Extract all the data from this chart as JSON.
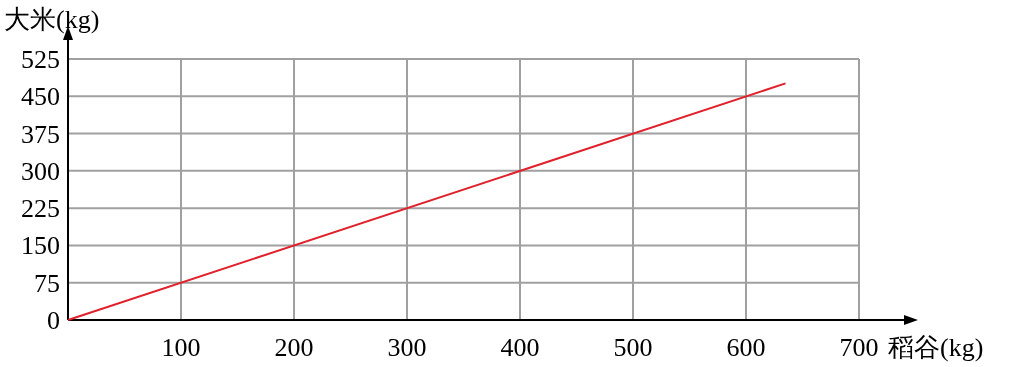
{
  "chart_data": {
    "type": "line",
    "xlabel": "稻谷(kg)",
    "ylabel": "大米(kg)",
    "x": [
      0,
      635
    ],
    "series": [
      {
        "color": "#e0202a",
        "values": [
          0,
          476
        ]
      }
    ],
    "xlim": [
      0,
      700
    ],
    "ylim": [
      0,
      525
    ],
    "xticks": [
      {
        "value": 0,
        "label": null
      },
      100,
      200,
      300,
      400,
      500,
      600,
      700
    ],
    "yticks": [
      0,
      75,
      150,
      225,
      300,
      375,
      450,
      525
    ],
    "grid": true,
    "marker": "none",
    "line_style": "solid"
  }
}
